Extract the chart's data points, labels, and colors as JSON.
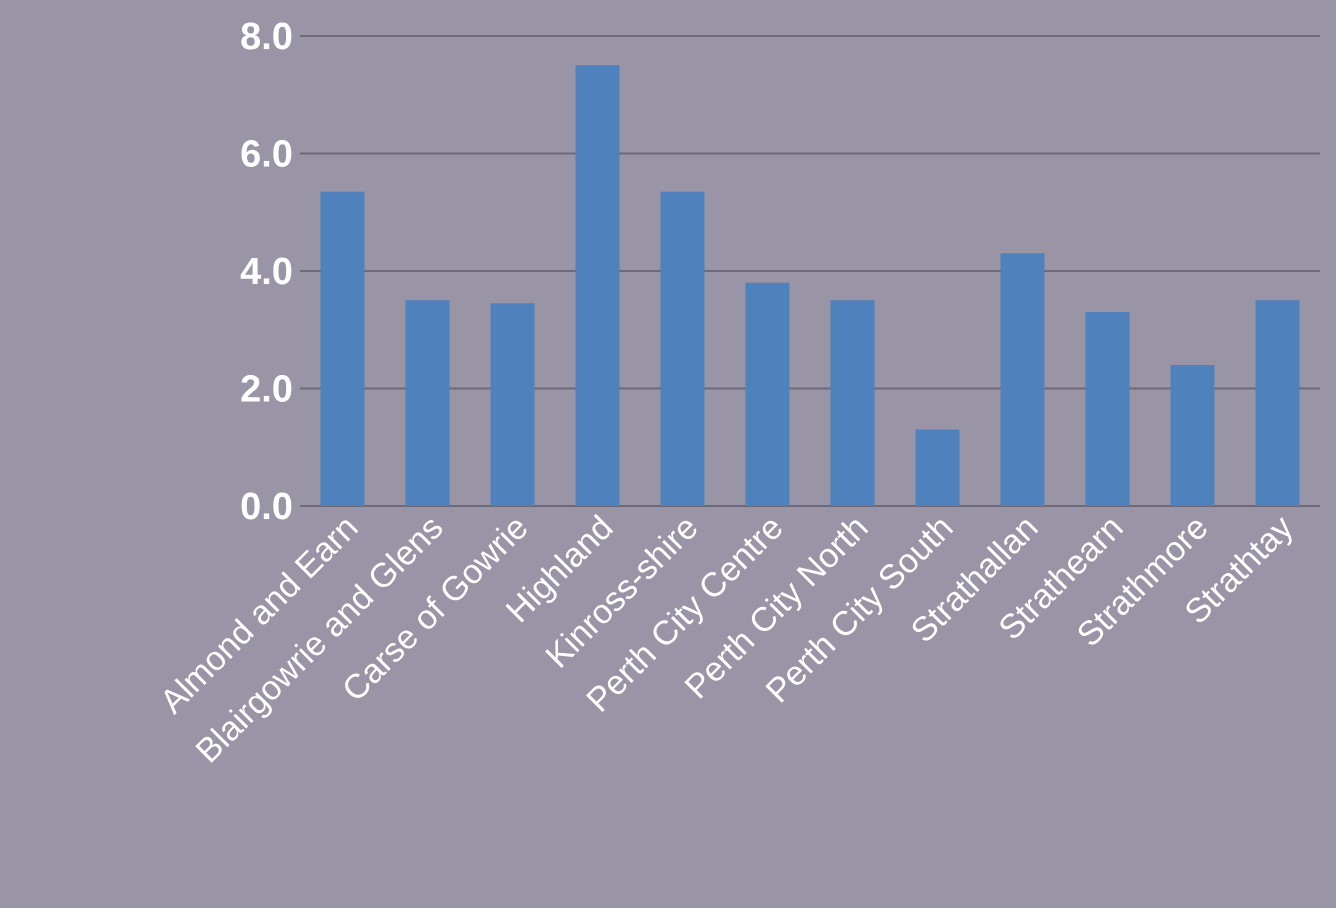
{
  "chart_data": {
    "type": "bar",
    "categories": [
      "Almond and Earn",
      "Blairgowrie and Glens",
      "Carse of Gowrie",
      "Highland",
      "Kinross-shire",
      "Perth City Centre",
      "Perth City North",
      "Perth City South",
      "Strathallan",
      "Strathearn",
      "Strathmore",
      "Strathtay"
    ],
    "values": [
      5.35,
      3.5,
      3.45,
      7.5,
      5.35,
      3.8,
      3.5,
      1.3,
      4.3,
      3.3,
      2.4,
      3.5
    ],
    "color": "#4f81bd",
    "ylim": [
      0,
      8
    ],
    "yticks": [
      {
        "value": 0,
        "label": "0.0"
      },
      {
        "value": 2,
        "label": "2.0"
      },
      {
        "value": 4,
        "label": "4.0"
      },
      {
        "value": 6,
        "label": "6.0"
      },
      {
        "value": 8,
        "label": "8.0"
      }
    ],
    "grid": "y"
  }
}
